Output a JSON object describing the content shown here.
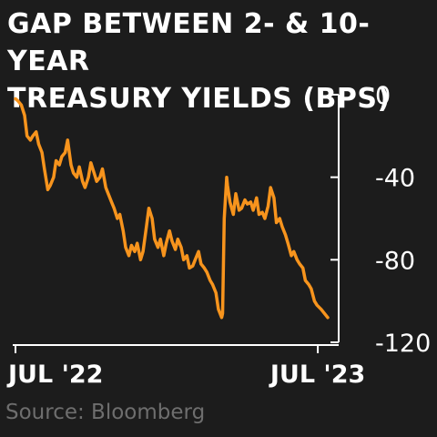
{
  "title_lines": [
    "GAP BETWEEN 2- & 10-YEAR",
    "TREASURY YIELDS (BPS)"
  ],
  "source": "Source: Bloomberg",
  "colors": {
    "background": "#1c1c1c",
    "line": "#f7941d",
    "text": "#ffffff",
    "source": "#6e6e6e",
    "axis": "#ffffff"
  },
  "chart_data": {
    "type": "line",
    "title": "GAP BETWEEN 2- & 10-YEAR TREASURY YIELDS (BPS)",
    "xlabel": "",
    "ylabel": "",
    "x_range": [
      "2022-07-01",
      "2023-07-13"
    ],
    "ylim": [
      -120,
      0
    ],
    "y_ticks": [
      0,
      -40,
      -80,
      -120
    ],
    "y_tick_labels": [
      "0",
      "-40",
      "-80",
      "-120"
    ],
    "x_ticks": [
      "2022-07-01",
      "2023-07-01"
    ],
    "x_tick_labels": [
      "JUL '22",
      "JUL '23"
    ],
    "grid": false,
    "y_axis_position": "right",
    "series": [
      {
        "x": [
          "2022-07-01",
          "2022-07-04",
          "2022-07-08",
          "2022-07-12",
          "2022-07-15",
          "2022-07-19",
          "2022-07-22",
          "2022-07-26",
          "2022-07-29",
          "2022-08-02",
          "2022-08-05",
          "2022-08-09",
          "2022-08-12",
          "2022-08-16",
          "2022-08-19",
          "2022-08-23",
          "2022-08-26",
          "2022-08-30",
          "2022-09-02",
          "2022-09-06",
          "2022-09-09",
          "2022-09-13",
          "2022-09-16",
          "2022-09-20",
          "2022-09-23",
          "2022-09-27",
          "2022-09-30",
          "2022-10-04",
          "2022-10-07",
          "2022-10-11",
          "2022-10-14",
          "2022-10-18",
          "2022-10-21",
          "2022-10-25",
          "2022-10-28",
          "2022-11-01",
          "2022-11-04",
          "2022-11-08",
          "2022-11-11",
          "2022-11-15",
          "2022-11-18",
          "2022-11-22",
          "2022-11-25",
          "2022-11-29",
          "2022-12-02",
          "2022-12-06",
          "2022-12-09",
          "2022-12-13",
          "2022-12-16",
          "2022-12-20",
          "2022-12-23",
          "2022-12-27",
          "2022-12-30",
          "2023-01-03",
          "2023-01-06",
          "2023-01-10",
          "2023-01-13",
          "2023-01-17",
          "2023-01-20",
          "2023-01-24",
          "2023-01-27",
          "2023-01-31",
          "2023-02-03",
          "2023-02-07",
          "2023-02-10",
          "2023-02-14",
          "2023-02-17",
          "2023-02-21",
          "2023-02-24",
          "2023-02-28",
          "2023-03-03",
          "2023-03-07",
          "2023-03-08",
          "2023-03-10",
          "2023-03-13",
          "2023-03-14",
          "2023-03-17",
          "2023-03-21",
          "2023-03-24",
          "2023-03-28",
          "2023-03-31",
          "2023-04-04",
          "2023-04-07",
          "2023-04-11",
          "2023-04-14",
          "2023-04-18",
          "2023-04-21",
          "2023-04-25",
          "2023-04-28",
          "2023-05-02",
          "2023-05-05",
          "2023-05-09",
          "2023-05-12",
          "2023-05-16",
          "2023-05-19",
          "2023-05-23",
          "2023-05-26",
          "2023-05-30",
          "2023-06-02",
          "2023-06-06",
          "2023-06-09",
          "2023-06-13",
          "2023-06-16",
          "2023-06-20",
          "2023-06-23",
          "2023-06-27",
          "2023-06-30",
          "2023-07-05",
          "2023-07-09",
          "2023-07-13"
        ],
        "values": [
          -2,
          -3,
          -5,
          -10,
          -20,
          -22,
          -20,
          -18,
          -24,
          -28,
          -36,
          -46,
          -44,
          -40,
          -32,
          -34,
          -30,
          -28,
          -22,
          -34,
          -38,
          -40,
          -35,
          -42,
          -45,
          -40,
          -33,
          -38,
          -42,
          -40,
          -36,
          -45,
          -48,
          -52,
          -55,
          -60,
          -58,
          -66,
          -74,
          -78,
          -73,
          -76,
          -72,
          -80,
          -76,
          -64,
          -55,
          -60,
          -70,
          -74,
          -70,
          -78,
          -72,
          -66,
          -71,
          -75,
          -70,
          -74,
          -80,
          -78,
          -84,
          -83,
          -80,
          -76,
          -82,
          -84,
          -86,
          -90,
          -92,
          -96,
          -104,
          -108,
          -106,
          -60,
          -40,
          -44,
          -52,
          -58,
          -48,
          -56,
          -55,
          -51,
          -53,
          -52,
          -56,
          -50,
          -58,
          -57,
          -60,
          -54,
          -45,
          -50,
          -62,
          -60,
          -64,
          -68,
          -72,
          -78,
          -76,
          -80,
          -82,
          -84,
          -90,
          -92,
          -94,
          -100,
          -102,
          -104,
          -106,
          -108
        ]
      }
    ]
  }
}
